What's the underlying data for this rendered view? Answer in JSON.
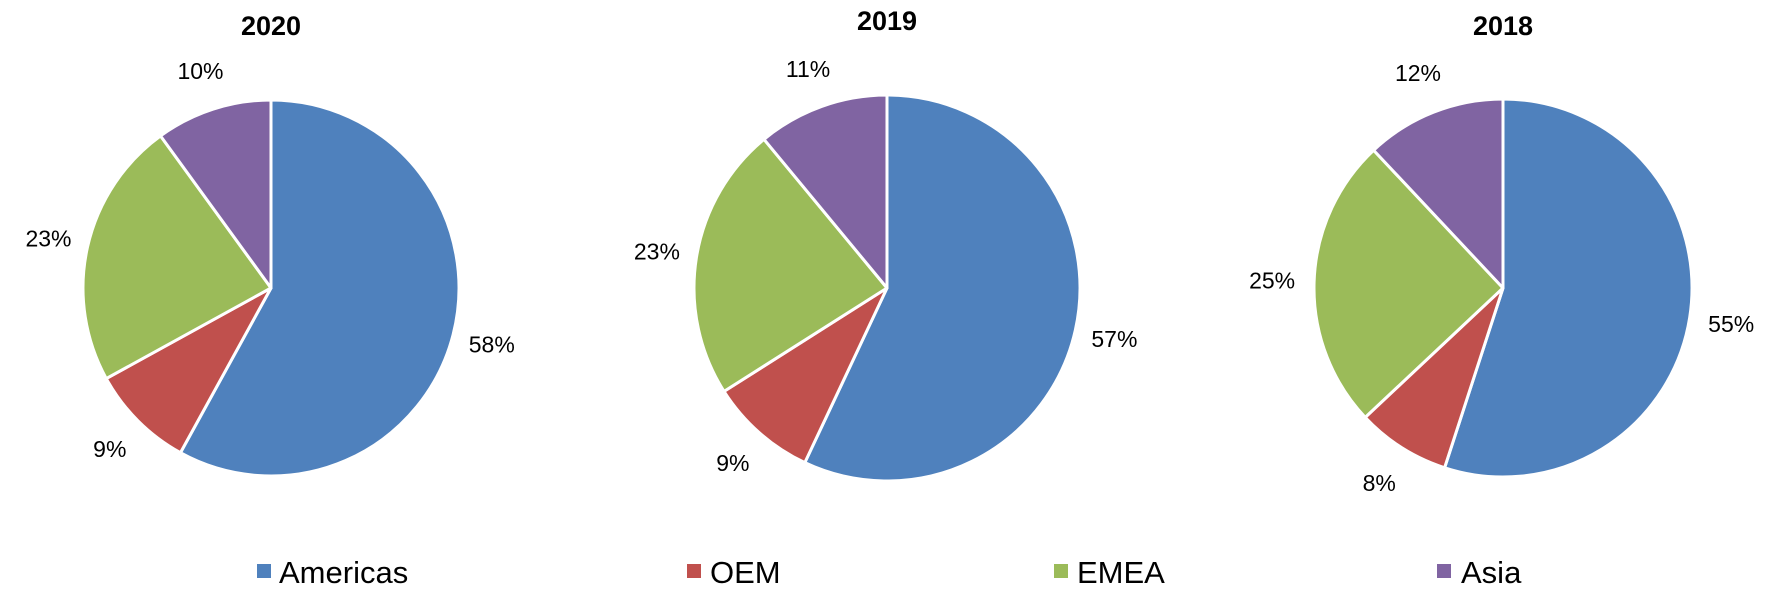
{
  "chart_data": {
    "type": "pie",
    "categories": [
      "Americas",
      "OEM",
      "EMEA",
      "Asia"
    ],
    "colors": {
      "Americas": "#4F81BD",
      "OEM": "#C0504D",
      "EMEA": "#9BBB59",
      "Asia": "#8064A2"
    },
    "legend_position": "bottom",
    "charts": [
      {
        "title": "2020",
        "values": [
          58,
          9,
          23,
          10
        ],
        "labels": [
          "58%",
          "9%",
          "23%",
          "10%"
        ]
      },
      {
        "title": "2019",
        "values": [
          57,
          9,
          23,
          11
        ],
        "labels": [
          "57%",
          "9%",
          "23%",
          "11%"
        ]
      },
      {
        "title": "2018",
        "values": [
          55,
          8,
          25,
          12
        ],
        "labels": [
          "55%",
          "8%",
          "25%",
          "12%"
        ]
      }
    ]
  }
}
